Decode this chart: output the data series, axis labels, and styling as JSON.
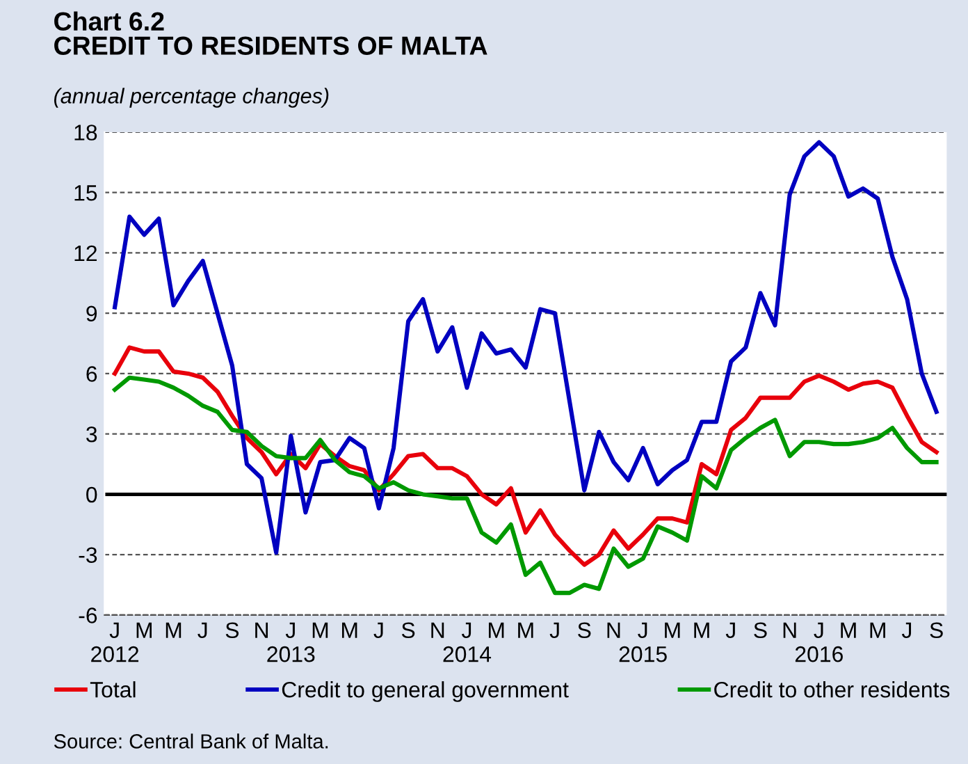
{
  "chart_data": {
    "type": "line",
    "title": "Chart 6.2\nCREDIT TO RESIDENTS OF MALTA",
    "subtitle": "(annual percentage changes)",
    "categories": [
      "J\n2012",
      null,
      "M",
      null,
      "M",
      null,
      "J",
      null,
      "S",
      null,
      "N",
      null,
      "J\n2013",
      null,
      "M",
      null,
      "M",
      null,
      "J",
      null,
      "S",
      null,
      "N",
      null,
      "J\n2014",
      null,
      "M",
      null,
      "M",
      null,
      "J",
      null,
      "S",
      null,
      "N",
      null,
      "J\n2015",
      null,
      "M",
      null,
      "M",
      null,
      "J",
      null,
      "S",
      null,
      "N",
      null,
      "J\n2016",
      null,
      "M",
      null,
      "M",
      null,
      "J",
      null,
      "S"
    ],
    "series": [
      {
        "name": "Total",
        "color": "#e8000b",
        "values": [
          6.0,
          7.3,
          7.1,
          7.1,
          6.1,
          6.0,
          5.8,
          5.1,
          3.9,
          2.8,
          2.1,
          1.0,
          2.0,
          1.3,
          2.5,
          1.9,
          1.4,
          1.2,
          0.2,
          1.0,
          1.9,
          2.0,
          1.3,
          1.3,
          0.9,
          0.0,
          -0.5,
          0.3,
          -1.9,
          -0.8,
          -2.0,
          -2.8,
          -3.5,
          -3.0,
          -1.8,
          -2.7,
          -2.0,
          -1.2,
          -1.2,
          -1.4,
          1.5,
          1.0,
          3.2,
          3.8,
          4.8,
          4.8,
          4.8,
          5.6,
          5.9,
          5.6,
          5.2,
          5.5,
          5.6,
          5.3,
          3.9,
          2.6,
          2.1
        ]
      },
      {
        "name": "Credit to general government",
        "color": "#0000c0",
        "values": [
          9.3,
          13.8,
          12.9,
          13.7,
          9.4,
          10.6,
          11.6,
          9.0,
          6.4,
          1.5,
          0.8,
          -2.9,
          2.9,
          -0.9,
          1.6,
          1.7,
          2.8,
          2.3,
          -0.7,
          2.3,
          8.6,
          9.7,
          7.1,
          8.3,
          5.3,
          8.0,
          7.0,
          7.2,
          6.3,
          9.2,
          9.0,
          4.6,
          0.2,
          3.1,
          1.6,
          0.7,
          2.3,
          0.5,
          1.2,
          1.7,
          3.6,
          3.6,
          6.6,
          7.3,
          10.0,
          8.4,
          14.9,
          16.8,
          17.5,
          16.8,
          14.8,
          15.2,
          14.7,
          11.8,
          9.7,
          6.0,
          4.1
        ]
      },
      {
        "name": "Credit to other residents",
        "color": "#009900",
        "values": [
          5.2,
          5.8,
          5.7,
          5.6,
          5.3,
          4.9,
          4.4,
          4.1,
          3.2,
          3.1,
          2.4,
          1.9,
          1.8,
          1.8,
          2.7,
          1.7,
          1.1,
          0.9,
          0.3,
          0.6,
          0.2,
          0.0,
          -0.1,
          -0.2,
          -0.2,
          -1.9,
          -2.4,
          -1.5,
          -4.0,
          -3.4,
          -4.9,
          -4.9,
          -4.5,
          -4.7,
          -2.7,
          -3.6,
          -3.2,
          -1.6,
          -1.9,
          -2.3,
          0.9,
          0.3,
          2.2,
          2.8,
          3.3,
          3.7,
          1.9,
          2.6,
          2.6,
          2.5,
          2.5,
          2.6,
          2.8,
          3.3,
          2.3,
          1.6,
          1.6
        ]
      }
    ],
    "ylim": [
      -6,
      18
    ],
    "yticks": [
      -6,
      -3,
      0,
      3,
      6,
      9,
      12,
      15,
      18
    ],
    "grid": "y",
    "legend": "bottom",
    "marker": "none",
    "line_style": "solid",
    "ref_lines": [
      {
        "axis": "y",
        "value": 0,
        "color": "#000000"
      }
    ],
    "annotations": [
      "Source: Central Bank of Malta."
    ]
  }
}
